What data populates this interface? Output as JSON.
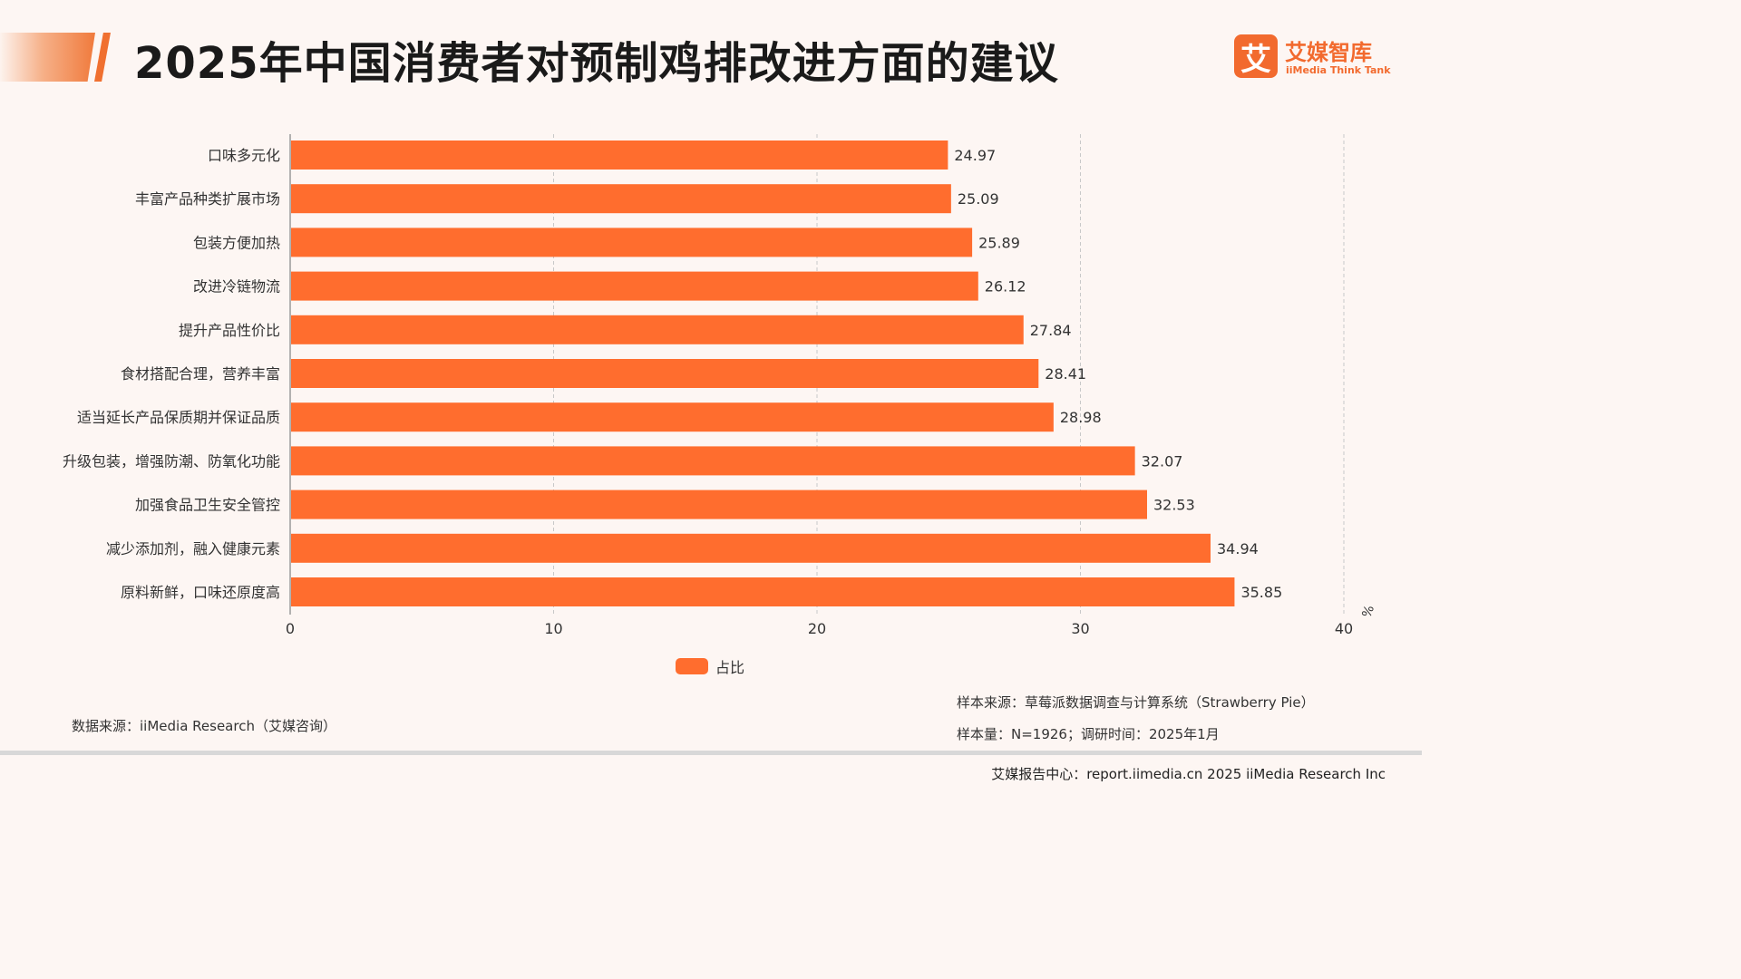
{
  "header": {
    "title": "2025年中国消费者对预制鸡排改进方面的建议"
  },
  "logo": {
    "mark": "艾",
    "name_cn": "艾媒智库",
    "name_en": "iiMedia Think Tank"
  },
  "colors": {
    "bar": "#ff6d2e",
    "accent": "#f26a2e",
    "grid": "#c8c8c8"
  },
  "chart_data": {
    "type": "bar",
    "orientation": "horizontal",
    "title": "2025年中国消费者对预制鸡排改进方面的建议",
    "categories": [
      "口味多元化",
      "丰富产品种类扩展市场",
      "包装方便加热",
      "改进冷链物流",
      "提升产品性价比",
      "食材搭配合理，营养丰富",
      "适当延长产品保质期并保证品质",
      "升级包装，增强防潮、防氧化功能",
      "加强食品卫生安全管控",
      "减少添加剂，融入健康元素",
      "原料新鲜，口味还原度高"
    ],
    "series": [
      {
        "name": "占比",
        "values": [
          24.97,
          25.09,
          25.89,
          26.12,
          27.84,
          28.41,
          28.98,
          32.07,
          32.53,
          34.94,
          35.85
        ]
      }
    ],
    "value_labels": [
      "24.97",
      "25.09",
      "25.89",
      "26.12",
      "27.84",
      "28.41",
      "28.98",
      "32.07",
      "32.53",
      "34.94",
      "35.85"
    ],
    "xlim": [
      0,
      40
    ],
    "xticks": [
      0,
      10,
      20,
      30,
      40
    ],
    "unit": "%",
    "grid": "vertical dashed",
    "legend": "bottom-center"
  },
  "notes": {
    "data_source": "数据来源：iiMedia Research（艾媒咨询）",
    "sample_source": "样本来源：草莓派数据调查与计算系统（Strawberry Pie）",
    "sample_size": "样本量：N=1926；调研时间：2025年1月"
  },
  "footer": {
    "text": "艾媒报告中心：report.iimedia.cn 2025 iiMedia Research Inc"
  }
}
